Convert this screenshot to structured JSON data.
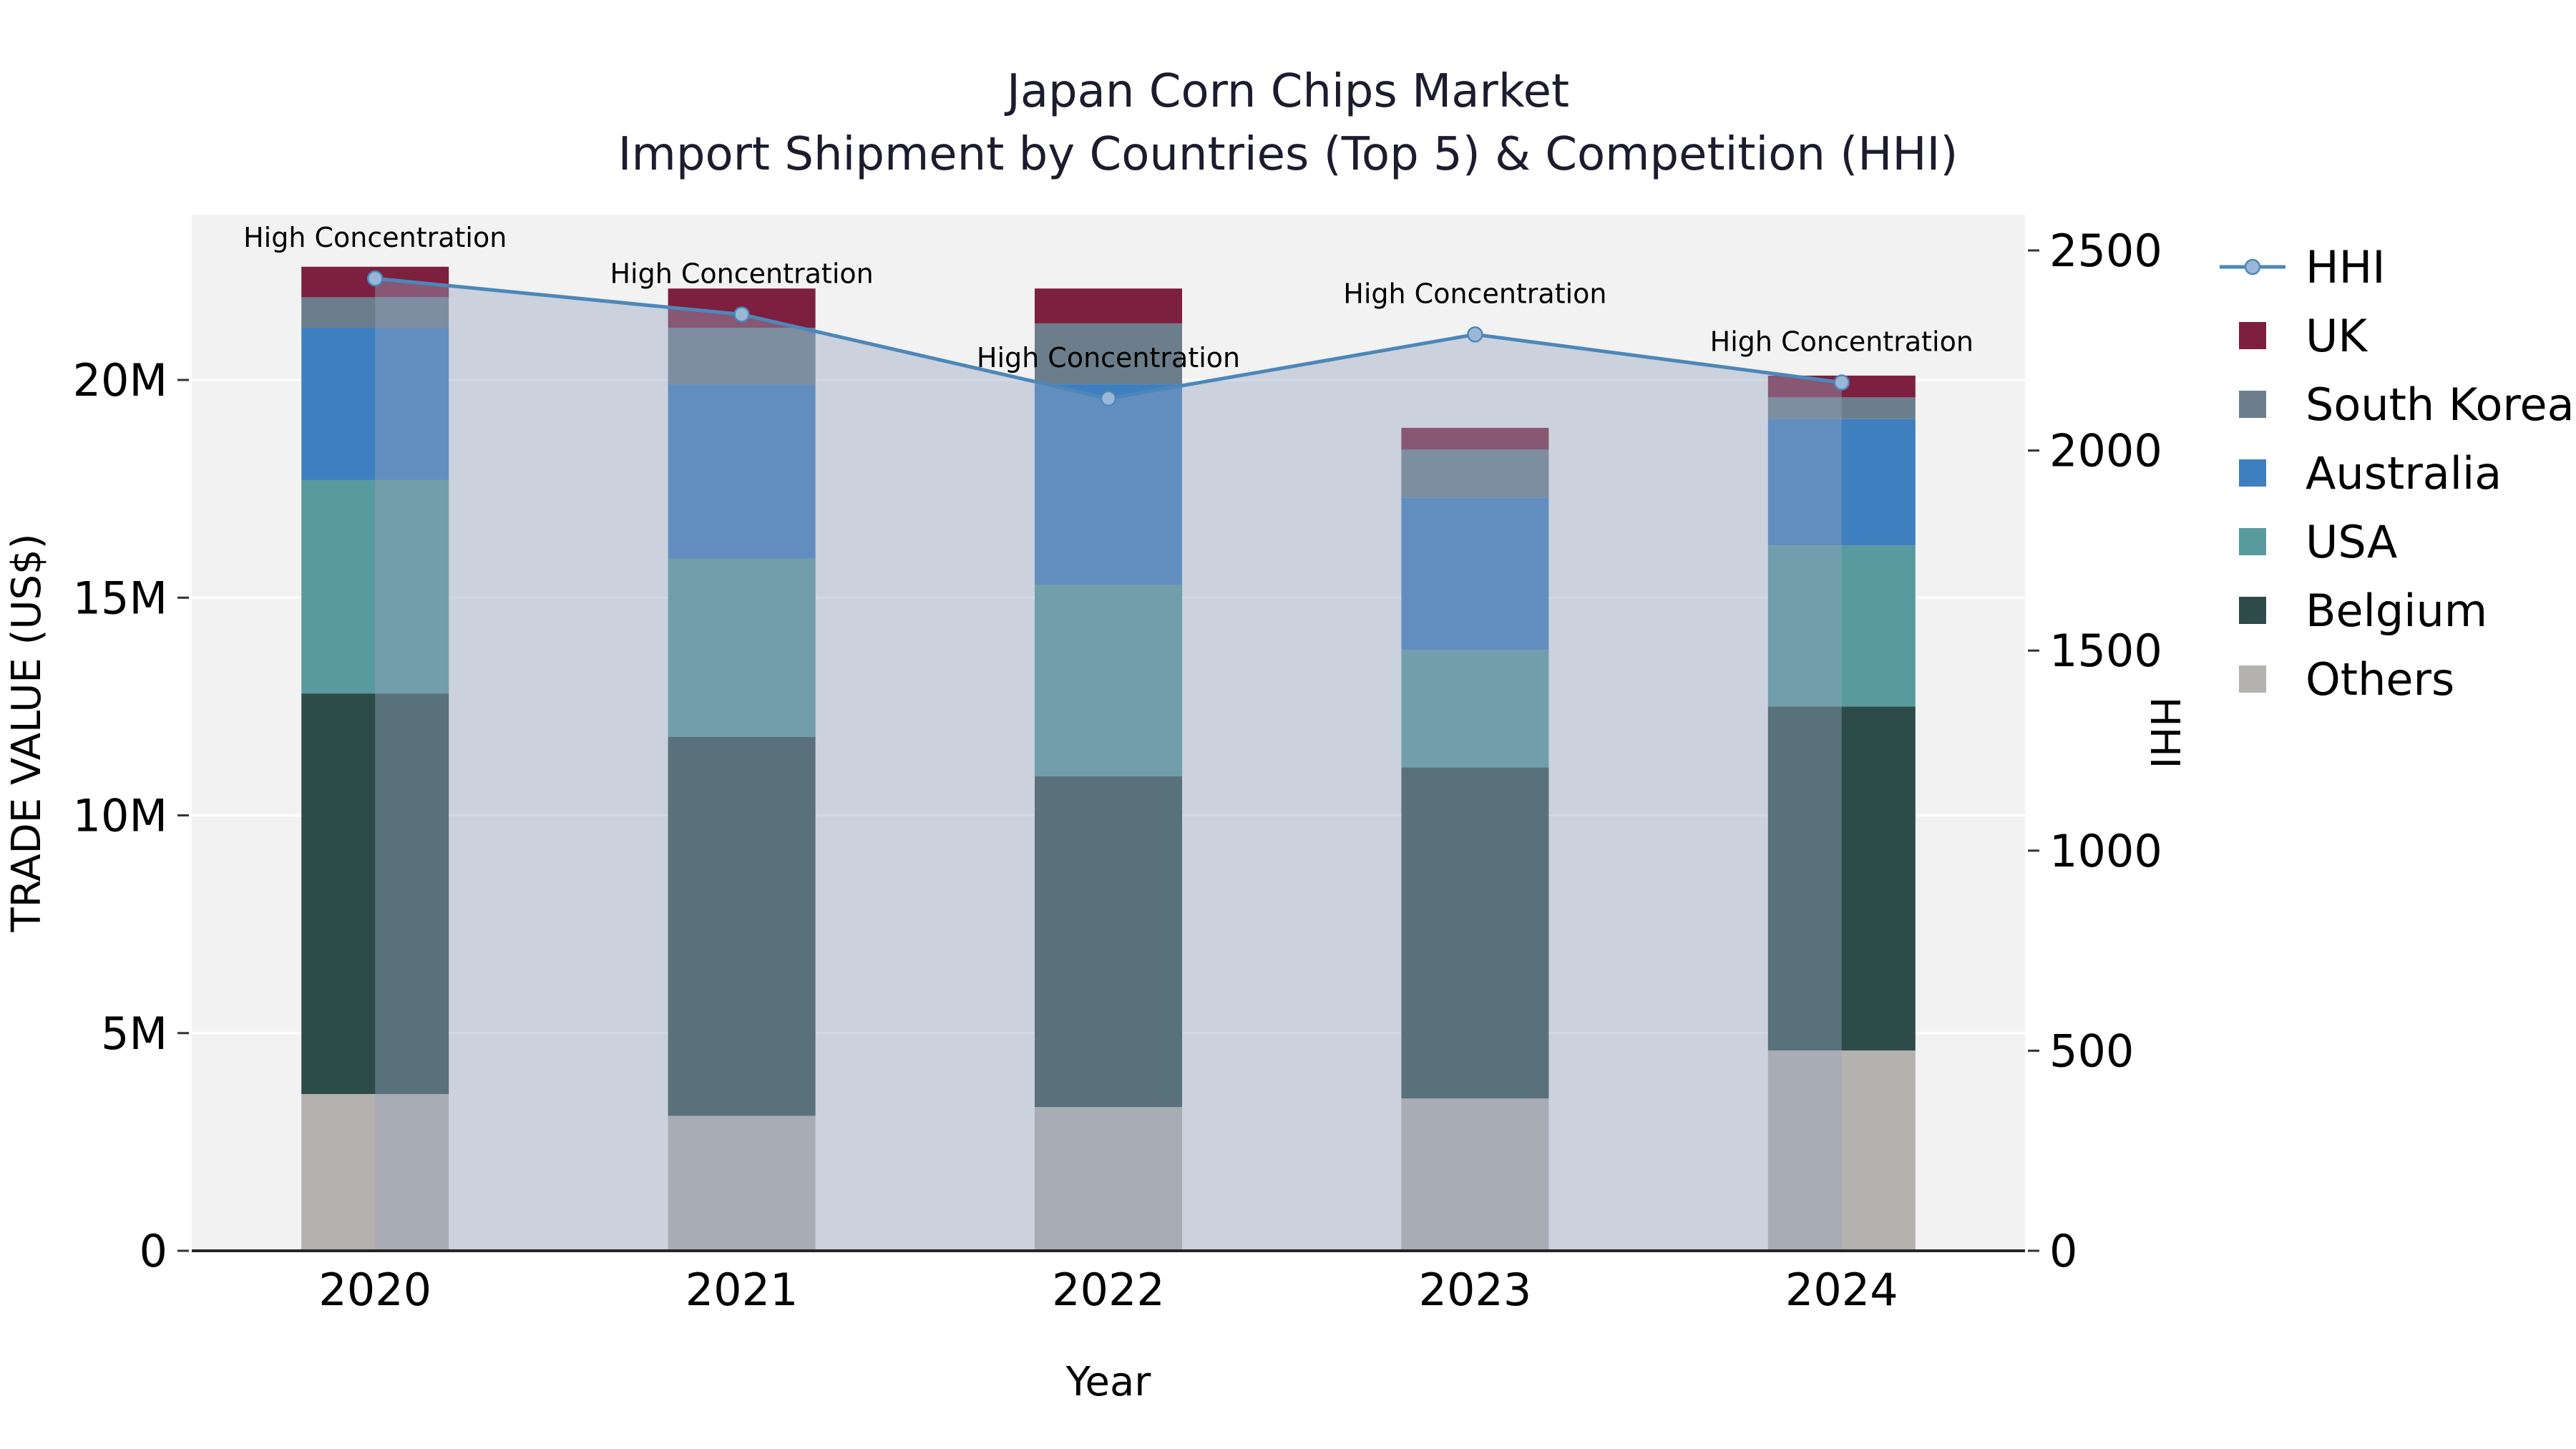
{
  "chart_data": {
    "type": "stacked_bar_with_line_dual_axis",
    "title": "Japan Corn Chips Market",
    "subtitle": "Import Shipment by Countries (Top 5) & Competition (HHI)",
    "categories": [
      "2020",
      "2021",
      "2022",
      "2023",
      "2024"
    ],
    "xlabel": "Year",
    "bar_value_unit": "millions of US$ (trade value)",
    "series": [
      {
        "name": "Others",
        "color": "#b3b2af",
        "values": [
          3.6,
          3.1,
          3.3,
          3.5,
          4.6
        ]
      },
      {
        "name": "Belgium",
        "color": "#2d4c49",
        "values": [
          9.2,
          8.7,
          7.6,
          7.6,
          7.9
        ]
      },
      {
        "name": "USA",
        "color": "#589a9d",
        "values": [
          4.9,
          4.1,
          4.4,
          2.7,
          3.7
        ]
      },
      {
        "name": "Australia",
        "color": "#3d7fbf",
        "values": [
          3.5,
          4.0,
          4.6,
          3.5,
          2.9
        ]
      },
      {
        "name": "South Korea",
        "color": "#6c7e8c",
        "values": [
          0.7,
          1.3,
          1.4,
          1.1,
          0.5
        ]
      },
      {
        "name": "UK",
        "color": "#7d1f3e",
        "values": [
          0.7,
          0.9,
          0.8,
          0.5,
          0.5
        ]
      }
    ],
    "line": {
      "name": "HHI",
      "values": [
        2430,
        2340,
        2130,
        2290,
        2170
      ]
    },
    "annotations": [
      "High Concentration",
      "High Concentration",
      "High Concentration",
      "High Concentration",
      "High Concentration"
    ],
    "left_axis": {
      "label": "TRADE VALUE (US$)",
      "tick_values": [
        0,
        5,
        10,
        15,
        20
      ],
      "tick_labels": [
        "0",
        "5M",
        "10M",
        "15M",
        "20M"
      ],
      "range_millions": [
        0,
        23.8
      ]
    },
    "right_axis": {
      "label": "HHI",
      "tick_values": [
        0,
        500,
        1000,
        1500,
        2000,
        2500
      ],
      "tick_labels": [
        "0",
        "500",
        "1000",
        "1500",
        "2000",
        "2500"
      ],
      "range": [
        0,
        2590
      ]
    },
    "legend_order": [
      "HHI",
      "UK",
      "South Korea",
      "Australia",
      "USA",
      "Belgium",
      "Others"
    ],
    "colors": {
      "plot_bg": "#f2f2f3",
      "grid": "#ffffff",
      "hhi_line": "#4d87b9",
      "hhi_marker": "#9ab8d6",
      "hhi_area_fill": "rgba(150,165,190,0.42)",
      "axis_text": "#000000",
      "tick_mark": "#333333",
      "x_axis_line": "#262626",
      "title_text": "#1c1c2e",
      "annotation_text": "#000000"
    }
  }
}
